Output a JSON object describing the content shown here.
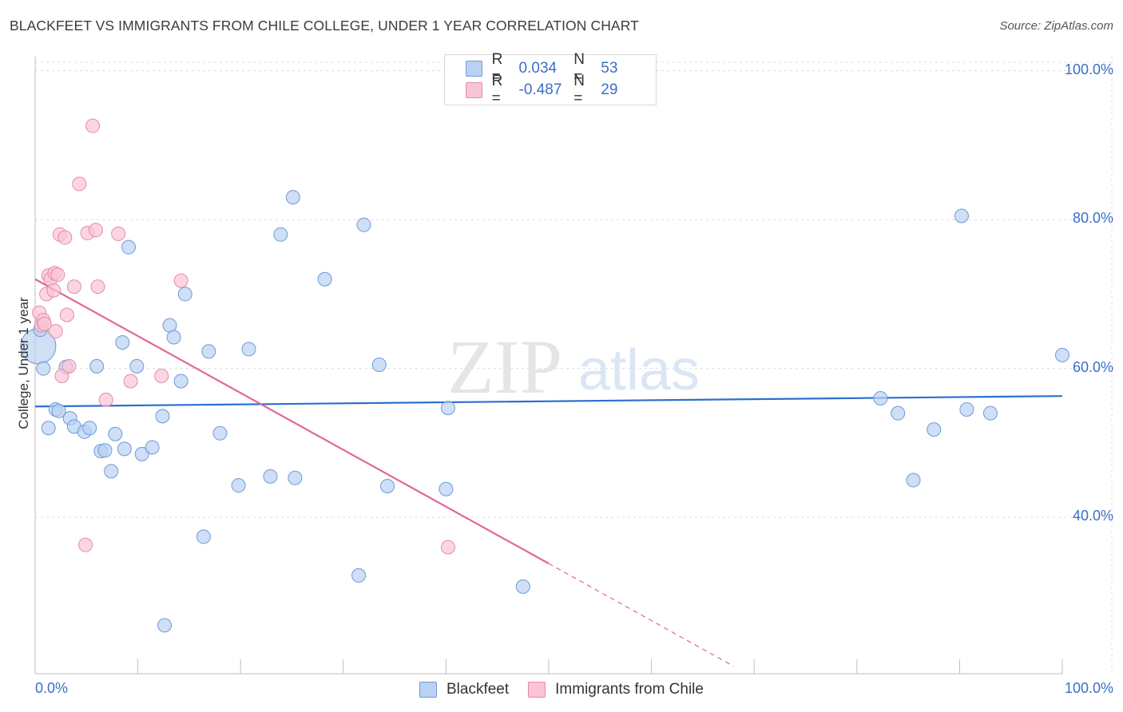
{
  "title": "BLACKFEET VS IMMIGRANTS FROM CHILE COLLEGE, UNDER 1 YEAR CORRELATION CHART",
  "source": "Source: ZipAtlas.com",
  "watermark": {
    "zip": "ZIP",
    "atlas": "atlas"
  },
  "legend": {
    "rows": [
      {
        "r_label": "R =",
        "r_value": "0.034",
        "n_label": "N =",
        "n_value": "53"
      },
      {
        "r_label": "R =",
        "r_value": "-0.487",
        "n_label": "N =",
        "n_value": "29"
      }
    ]
  },
  "colors": {
    "blackfeet_fill": "#b9d1f2",
    "blackfeet_stroke": "#6f9ad8",
    "blackfeet_line": "#2c6fd1",
    "chile_fill": "#f9c4d6",
    "chile_stroke": "#e68aab",
    "chile_line": "#e0679a",
    "tick_text": "#3a6fc8"
  },
  "chart_data": {
    "type": "scatter",
    "title": "BLACKFEET VS IMMIGRANTS FROM CHILE COLLEGE, UNDER 1 YEAR CORRELATION CHART",
    "xlabel": "",
    "ylabel": "College, Under 1 year",
    "xlim": [
      0,
      100
    ],
    "ylim": [
      19,
      102
    ],
    "x_tick_labels": [
      "0.0%",
      "100.0%"
    ],
    "y_ticks": [
      40,
      60,
      80,
      100
    ],
    "y_tick_labels": [
      "40.0%",
      "60.0%",
      "80.0%",
      "100.0%"
    ],
    "grid": true,
    "legend": [
      "Blackfeet",
      "Immigrants from Chile"
    ],
    "series": [
      {
        "name": "Blackfeet",
        "r": 0.034,
        "n": 53,
        "trend": {
          "x": [
            0,
            100
          ],
          "y": [
            54.9,
            56.3
          ]
        },
        "points": [
          [
            0.3,
            63.0
          ],
          [
            0.8,
            60.0
          ],
          [
            1.3,
            52.0
          ],
          [
            2.0,
            54.5
          ],
          [
            2.3,
            54.3
          ],
          [
            3.0,
            60.2
          ],
          [
            3.4,
            53.3
          ],
          [
            3.8,
            52.2
          ],
          [
            4.8,
            51.5
          ],
          [
            5.3,
            52.0
          ],
          [
            6.0,
            60.3
          ],
          [
            6.4,
            48.9
          ],
          [
            6.8,
            49.0
          ],
          [
            7.4,
            46.2
          ],
          [
            7.8,
            51.2
          ],
          [
            8.5,
            63.5
          ],
          [
            8.7,
            49.2
          ],
          [
            9.1,
            76.3
          ],
          [
            9.9,
            60.3
          ],
          [
            10.4,
            48.5
          ],
          [
            11.4,
            49.4
          ],
          [
            12.4,
            53.6
          ],
          [
            12.6,
            25.5
          ],
          [
            13.1,
            65.8
          ],
          [
            13.5,
            64.2
          ],
          [
            14.2,
            58.3
          ],
          [
            14.6,
            70.0
          ],
          [
            16.4,
            37.4
          ],
          [
            16.9,
            62.3
          ],
          [
            18.0,
            51.3
          ],
          [
            19.8,
            44.3
          ],
          [
            20.8,
            62.6
          ],
          [
            22.9,
            45.5
          ],
          [
            23.9,
            78.0
          ],
          [
            25.1,
            83.0
          ],
          [
            25.3,
            45.3
          ],
          [
            28.2,
            72.0
          ],
          [
            31.5,
            32.2
          ],
          [
            32.0,
            79.3
          ],
          [
            33.5,
            60.5
          ],
          [
            34.3,
            44.2
          ],
          [
            40.2,
            54.7
          ],
          [
            40.0,
            43.8
          ],
          [
            47.5,
            30.7
          ],
          [
            82.3,
            56.0
          ],
          [
            84.0,
            54.0
          ],
          [
            85.5,
            45.0
          ],
          [
            87.5,
            51.8
          ],
          [
            90.2,
            80.5
          ],
          [
            90.7,
            54.5
          ],
          [
            93.0,
            54.0
          ],
          [
            100.0,
            61.8
          ],
          [
            0.5,
            65.2
          ]
        ]
      },
      {
        "name": "Immigrants from Chile",
        "r": -0.487,
        "n": 29,
        "trend": {
          "x": [
            0,
            50
          ],
          "y": [
            72.0,
            33.8
          ]
        },
        "trend_dashed": {
          "x": [
            50,
            68
          ],
          "y": [
            33.8,
            20.0
          ]
        },
        "points": [
          [
            0.4,
            67.5
          ],
          [
            0.6,
            65.8
          ],
          [
            0.8,
            66.5
          ],
          [
            0.9,
            66.0
          ],
          [
            1.1,
            70.0
          ],
          [
            1.3,
            72.5
          ],
          [
            1.5,
            72.0
          ],
          [
            1.8,
            70.5
          ],
          [
            1.9,
            72.8
          ],
          [
            2.0,
            65.0
          ],
          [
            2.2,
            72.6
          ],
          [
            2.4,
            78.0
          ],
          [
            2.6,
            59.0
          ],
          [
            2.9,
            77.6
          ],
          [
            3.1,
            67.2
          ],
          [
            3.3,
            60.3
          ],
          [
            3.8,
            71.0
          ],
          [
            4.3,
            84.8
          ],
          [
            4.9,
            36.3
          ],
          [
            5.1,
            78.2
          ],
          [
            5.6,
            92.6
          ],
          [
            5.9,
            78.6
          ],
          [
            6.1,
            71.0
          ],
          [
            6.9,
            55.8
          ],
          [
            8.1,
            78.1
          ],
          [
            9.3,
            58.3
          ],
          [
            12.3,
            59.0
          ],
          [
            14.2,
            71.8
          ],
          [
            40.2,
            36.0
          ]
        ]
      }
    ]
  },
  "bottom_legend": [
    {
      "label": "Blackfeet"
    },
    {
      "label": "Immigrants from Chile"
    }
  ]
}
